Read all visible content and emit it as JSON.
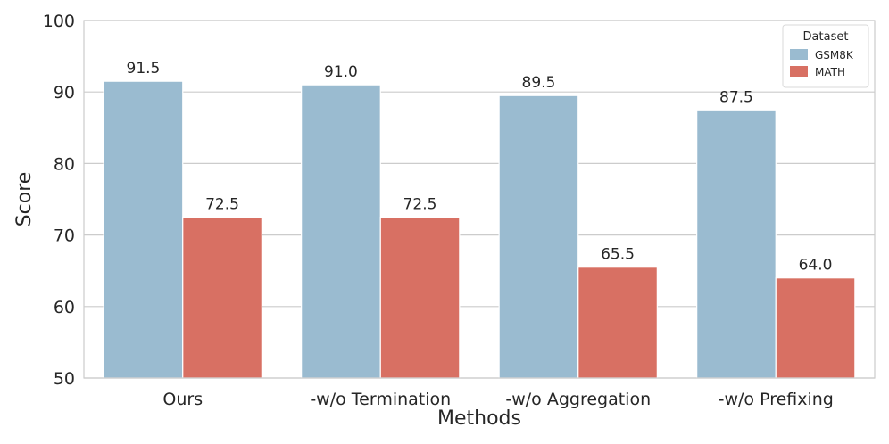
{
  "chart_data": {
    "type": "bar",
    "title": "",
    "xlabel": "Methods",
    "ylabel": "Score",
    "ylim": [
      50,
      100
    ],
    "yticks": [
      50,
      60,
      70,
      80,
      90,
      100
    ],
    "grid": "horizontal",
    "categories": [
      "Ours",
      "-w/o Termination",
      "-w/o Aggregation",
      "-w/o Prefixing"
    ],
    "series": [
      {
        "name": "GSM8K",
        "color": "#9abbd0",
        "values": [
          91.5,
          91.0,
          89.5,
          87.5
        ],
        "labels": [
          "91.5",
          "91.0",
          "89.5",
          "87.5"
        ]
      },
      {
        "name": "MATH",
        "color": "#d87063",
        "values": [
          72.5,
          72.5,
          65.5,
          64.0
        ],
        "labels": [
          "72.5",
          "72.5",
          "65.5",
          "64.0"
        ]
      }
    ],
    "legend": {
      "title": "Dataset",
      "placement": "top-right"
    }
  }
}
